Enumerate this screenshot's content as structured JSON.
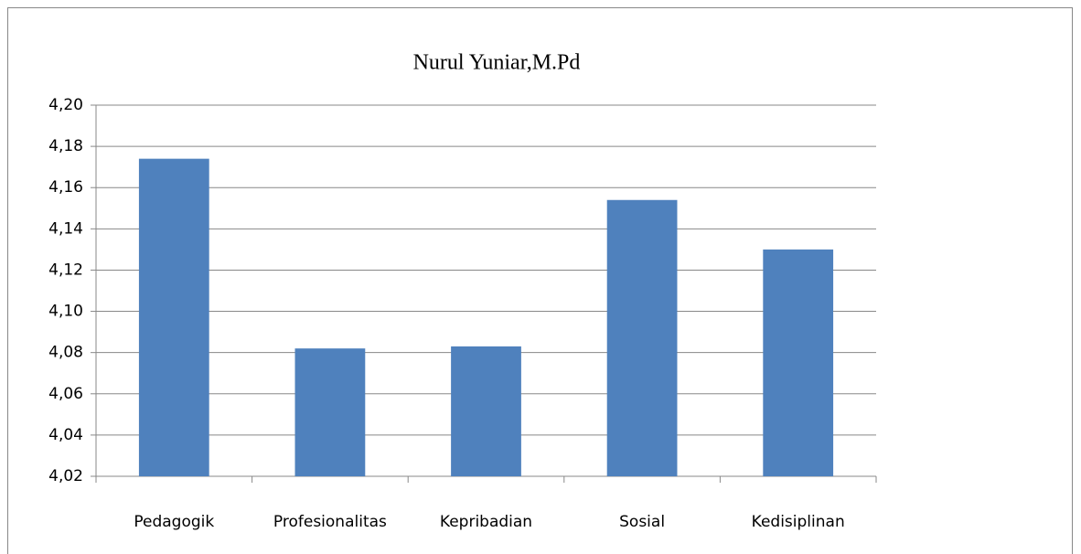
{
  "chart_data": {
    "type": "bar",
    "title": "Nurul Yuniar,M.Pd",
    "categories": [
      "Pedagogik",
      "Profesionalitas",
      "Kepribadian",
      "Sosial",
      "Kedisiplinan"
    ],
    "values": [
      4.174,
      4.082,
      4.083,
      4.154,
      4.13
    ],
    "color": "#4f81bd",
    "ylim": [
      4.02,
      4.2
    ],
    "yticks": [
      {
        "value": 4.02,
        "label": "4,02"
      },
      {
        "value": 4.04,
        "label": "4,04"
      },
      {
        "value": 4.06,
        "label": "4,06"
      },
      {
        "value": 4.08,
        "label": "4,08"
      },
      {
        "value": 4.1,
        "label": "4,10"
      },
      {
        "value": 4.12,
        "label": "4,12"
      },
      {
        "value": 4.14,
        "label": "4,14"
      },
      {
        "value": 4.16,
        "label": "4,16"
      },
      {
        "value": 4.18,
        "label": "4,18"
      },
      {
        "value": 4.2,
        "label": "4,20"
      }
    ],
    "grid": true
  }
}
